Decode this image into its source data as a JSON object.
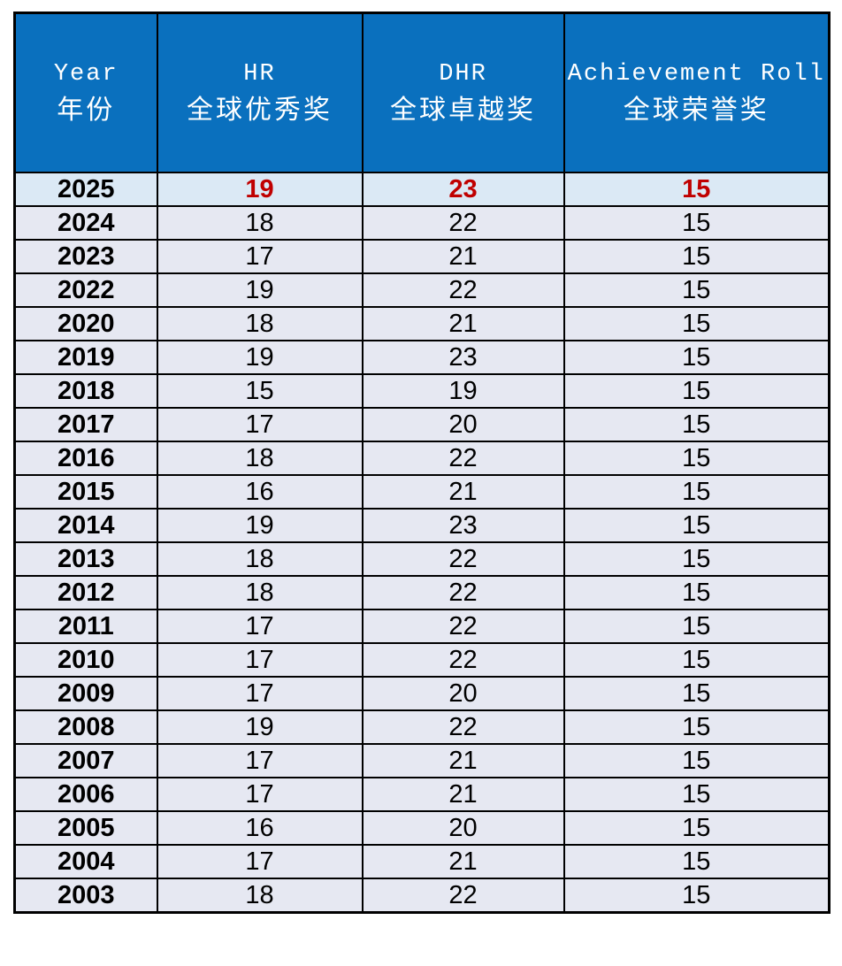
{
  "table": {
    "header": [
      {
        "en": "Year",
        "zh": "年份"
      },
      {
        "en": "HR",
        "zh": "全球优秀奖"
      },
      {
        "en": "DHR",
        "zh": "全球卓越奖"
      },
      {
        "en": "Achievement Roll",
        "zh": "全球荣誉奖"
      }
    ],
    "rows": [
      {
        "year": "2025",
        "values": [
          "19",
          "23",
          "15"
        ],
        "highlight": true
      },
      {
        "year": "2024",
        "values": [
          "18",
          "22",
          "15"
        ],
        "highlight": false
      },
      {
        "year": "2023",
        "values": [
          "17",
          "21",
          "15"
        ],
        "highlight": false
      },
      {
        "year": "2022",
        "values": [
          "19",
          "22",
          "15"
        ],
        "highlight": false
      },
      {
        "year": "2020",
        "values": [
          "18",
          "21",
          "15"
        ],
        "highlight": false
      },
      {
        "year": "2019",
        "values": [
          "19",
          "23",
          "15"
        ],
        "highlight": false
      },
      {
        "year": "2018",
        "values": [
          "15",
          "19",
          "15"
        ],
        "highlight": false
      },
      {
        "year": "2017",
        "values": [
          "17",
          "20",
          "15"
        ],
        "highlight": false
      },
      {
        "year": "2016",
        "values": [
          "18",
          "22",
          "15"
        ],
        "highlight": false
      },
      {
        "year": "2015",
        "values": [
          "16",
          "21",
          "15"
        ],
        "highlight": false
      },
      {
        "year": "2014",
        "values": [
          "19",
          "23",
          "15"
        ],
        "highlight": false
      },
      {
        "year": "2013",
        "values": [
          "18",
          "22",
          "15"
        ],
        "highlight": false
      },
      {
        "year": "2012",
        "values": [
          "18",
          "22",
          "15"
        ],
        "highlight": false
      },
      {
        "year": "2011",
        "values": [
          "17",
          "22",
          "15"
        ],
        "highlight": false
      },
      {
        "year": "2010",
        "values": [
          "17",
          "22",
          "15"
        ],
        "highlight": false
      },
      {
        "year": "2009",
        "values": [
          "17",
          "20",
          "15"
        ],
        "highlight": false
      },
      {
        "year": "2008",
        "values": [
          "19",
          "22",
          "15"
        ],
        "highlight": false
      },
      {
        "year": "2007",
        "values": [
          "17",
          "21",
          "15"
        ],
        "highlight": false
      },
      {
        "year": "2006",
        "values": [
          "17",
          "21",
          "15"
        ],
        "highlight": false
      },
      {
        "year": "2005",
        "values": [
          "16",
          "20",
          "15"
        ],
        "highlight": false
      },
      {
        "year": "2004",
        "values": [
          "17",
          "21",
          "15"
        ],
        "highlight": false
      },
      {
        "year": "2003",
        "values": [
          "18",
          "22",
          "15"
        ],
        "highlight": false
      }
    ],
    "colors": {
      "header_bg": "#0A70BE",
      "header_text": "#FFFFFF",
      "row_bg": "#E6E8F2",
      "highlight_row_bg": "#DBE9F5",
      "highlight_value": "#C00000",
      "year_text": "#000000",
      "value_text": "#000000",
      "border": "#000000"
    }
  },
  "chart_data": {
    "type": "table",
    "columns": [
      "Year 年份",
      "HR 全球优秀奖",
      "DHR 全球卓越奖",
      "Achievement Roll 全球荣誉奖"
    ],
    "rows": [
      [
        2025,
        19,
        23,
        15
      ],
      [
        2024,
        18,
        22,
        15
      ],
      [
        2023,
        17,
        21,
        15
      ],
      [
        2022,
        19,
        22,
        15
      ],
      [
        2020,
        18,
        21,
        15
      ],
      [
        2019,
        19,
        23,
        15
      ],
      [
        2018,
        15,
        19,
        15
      ],
      [
        2017,
        17,
        20,
        15
      ],
      [
        2016,
        18,
        22,
        15
      ],
      [
        2015,
        16,
        21,
        15
      ],
      [
        2014,
        19,
        23,
        15
      ],
      [
        2013,
        18,
        22,
        15
      ],
      [
        2012,
        18,
        22,
        15
      ],
      [
        2011,
        17,
        22,
        15
      ],
      [
        2010,
        17,
        22,
        15
      ],
      [
        2009,
        17,
        20,
        15
      ],
      [
        2008,
        19,
        22,
        15
      ],
      [
        2007,
        17,
        21,
        15
      ],
      [
        2006,
        17,
        21,
        15
      ],
      [
        2005,
        16,
        20,
        15
      ],
      [
        2004,
        17,
        21,
        15
      ],
      [
        2003,
        18,
        22,
        15
      ]
    ],
    "annotations": "2025 row values (19, 23, 15) shown bold red on light-blue highlighted row; year 2021 absent from table"
  }
}
